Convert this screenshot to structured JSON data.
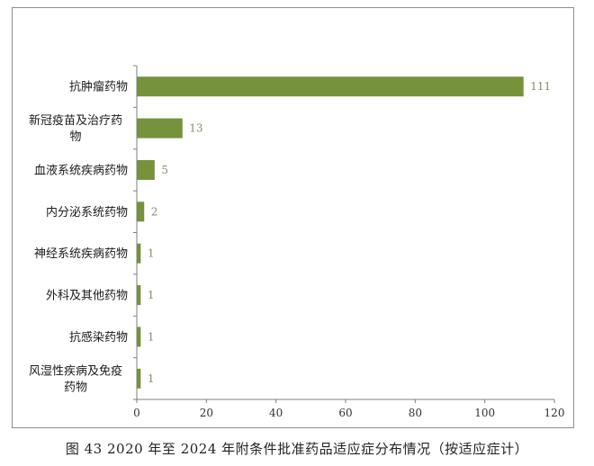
{
  "caption": "图 43   2020 年至 2024 年附条件批准药品适应症分布情况（按适应症计）",
  "colors": {
    "bar": "#76923c",
    "axis": "#7f7f7f",
    "value_label": "#8a8a6a"
  },
  "chart_data": {
    "type": "bar",
    "orientation": "horizontal",
    "title": "",
    "xlabel": "",
    "ylabel": "",
    "categories": [
      [
        "抗肿瘤药物"
      ],
      [
        "新冠疫苗及治疗药",
        "物"
      ],
      [
        "血液系统疾病药物"
      ],
      [
        "内分泌系统药物"
      ],
      [
        "神经系统疾病药物"
      ],
      [
        "外科及其他药物"
      ],
      [
        "抗感染药物"
      ],
      [
        "风湿性疾病及免疫",
        "药物"
      ]
    ],
    "values": [
      111,
      13,
      5,
      2,
      1,
      1,
      1,
      1
    ],
    "xlim": [
      0,
      120
    ],
    "xticks": [
      "0",
      "20",
      "40",
      "60",
      "80",
      "100",
      "120"
    ],
    "grid": false,
    "legend": "none",
    "data_labels": true
  }
}
